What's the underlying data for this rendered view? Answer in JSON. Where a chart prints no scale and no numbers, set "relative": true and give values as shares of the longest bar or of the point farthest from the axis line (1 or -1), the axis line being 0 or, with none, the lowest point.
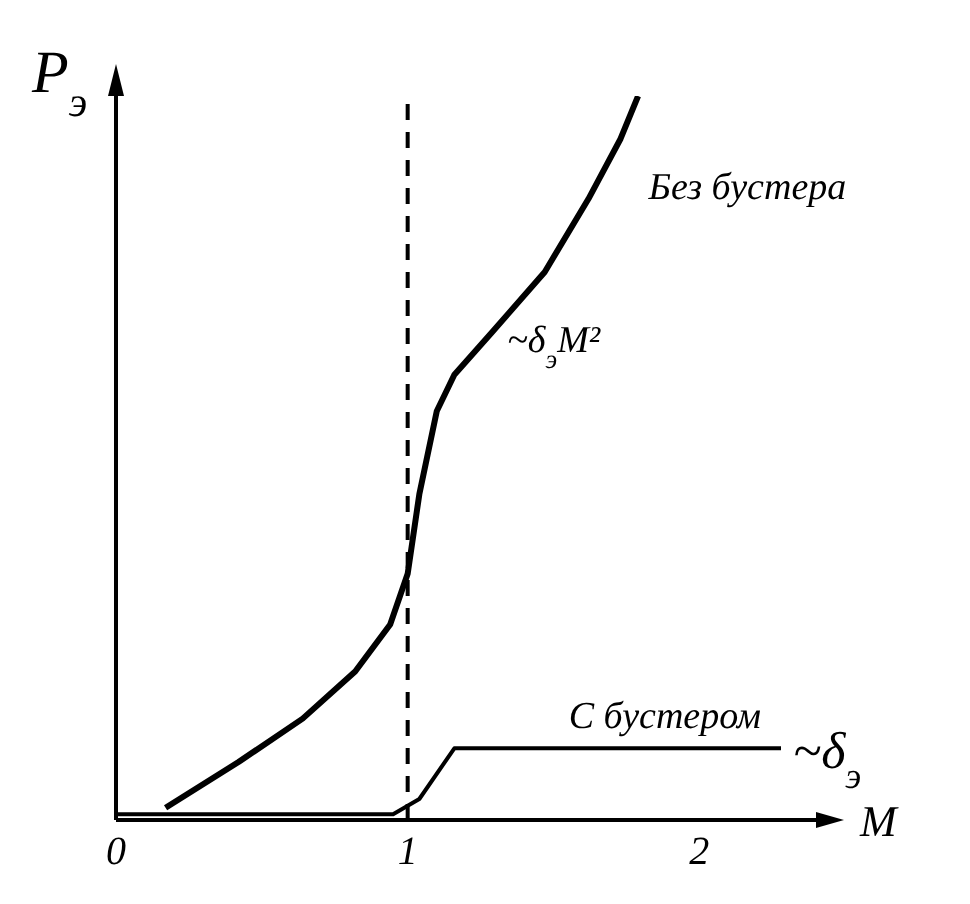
{
  "chart_data": {
    "type": "line",
    "relative": true,
    "xlabel": "M",
    "ylabel": "P$_{э}$",
    "xlim": [
      0,
      2.4
    ],
    "xticks": [
      0,
      1,
      2
    ],
    "grid": false,
    "marker": "none",
    "line_style": "solid",
    "series": [
      {
        "name": "Без бустера",
        "color": "#000000",
        "x": [
          0.17,
          0.42,
          0.64,
          0.82,
          0.94,
          1.0,
          1.04,
          1.1,
          1.16,
          1.29,
          1.47,
          1.62,
          1.73,
          1.79
        ],
        "values": [
          0.017,
          0.08,
          0.14,
          0.205,
          0.27,
          0.34,
          0.45,
          0.565,
          0.615,
          0.674,
          0.757,
          0.858,
          0.941,
          1.0
        ]
      },
      {
        "name": "С бустером",
        "color": "#000000",
        "x": [
          0,
          0.95,
          1.04,
          1.16,
          2.28
        ],
        "values": [
          0.008,
          0.008,
          0.029,
          0.099,
          0.099
        ]
      }
    ],
    "ref_lines": [
      {
        "axis": "x",
        "value": 1,
        "color": "#000000",
        "line_style": "dashed"
      }
    ],
    "annotations": [
      {
        "text": "~δ$_{э}$M²",
        "x": 1.3,
        "y": 0.674
      },
      {
        "text": "~δ$_{э}$",
        "x": 2.28,
        "y": 0.099
      }
    ]
  }
}
